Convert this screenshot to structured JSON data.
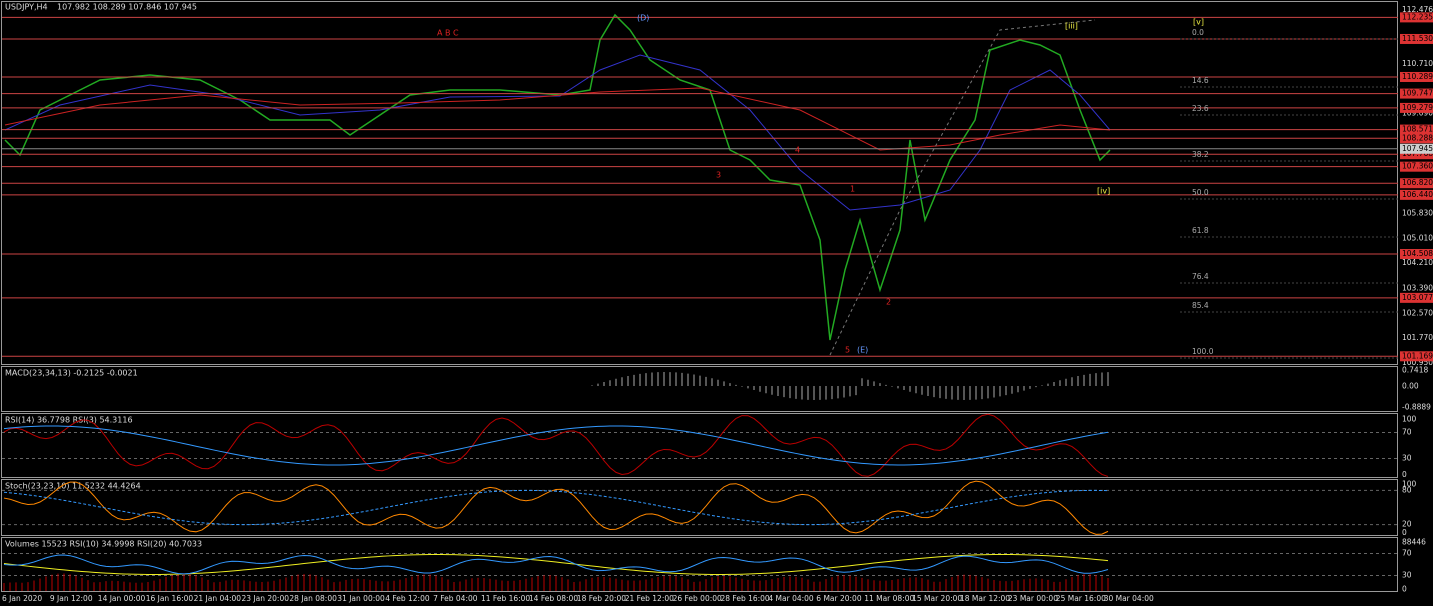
{
  "header": {
    "symbol": "USDJPY,H4",
    "quote": "107.982 108.289 107.846 107.945"
  },
  "price_axis": {
    "levels": [
      "112.476",
      "110.710",
      "109.090",
      "105.830",
      "105.010",
      "104.210",
      "103.390",
      "102.570",
      "101.770",
      "100.950"
    ],
    "marked": [
      "112.235",
      "111.530",
      "110.289",
      "109.747",
      "109.279",
      "108.571",
      "108.288",
      "107.768",
      "107.360",
      "106.820",
      "106.440",
      "104.508",
      "103.077",
      "101.169"
    ],
    "current": "107.945"
  },
  "fib_levels": [
    "0.0",
    "14.6",
    "23.6",
    "38.2",
    "50.0",
    "61.8",
    "76.4",
    "85.4",
    "100.0"
  ],
  "wave_labels": [
    "A B C",
    "(D)",
    "(E)",
    "[iv]",
    "[v]",
    "[iii]",
    "3",
    "4",
    "2",
    "1",
    "5"
  ],
  "date_axis": [
    "6 Jan 2020",
    "9 Jan 12:00",
    "14 Jan 00:00",
    "16 Jan 16:00",
    "21 Jan 04:00",
    "23 Jan 20:00",
    "28 Jan 08:00",
    "31 Jan 00:00",
    "4 Feb 12:00",
    "7 Feb 04:00",
    "11 Feb 16:00",
    "14 Feb 08:00",
    "18 Feb 20:00",
    "21 Feb 12:00",
    "26 Feb 00:00",
    "28 Feb 16:00",
    "4 Mar 04:00",
    "6 Mar 20:00",
    "11 Mar 08:00",
    "15 Mar 20:00",
    "18 Mar 12:00",
    "23 Mar 00:00",
    "25 Mar 16:00",
    "30 Mar 04:00"
  ],
  "panels": [
    {
      "title": "MACD(23,34,13) -0.2125 -0.0021",
      "scale": [
        "0.7418",
        "0.00",
        "-0.8889"
      ]
    },
    {
      "title": "RSI(14) 36.7798  RSI(3) 54.3116",
      "scale": [
        "100",
        "70",
        "30",
        "0"
      ]
    },
    {
      "title": "Stoch(23,23,10) 11.5232 44.4264",
      "scale": [
        "100",
        "80",
        "20",
        "0"
      ]
    },
    {
      "title": "Volumes 15523  RSI(10) 34.9998  RSI(20) 40.7033",
      "scale": [
        "88446",
        "70",
        "30",
        "0"
      ]
    }
  ]
}
